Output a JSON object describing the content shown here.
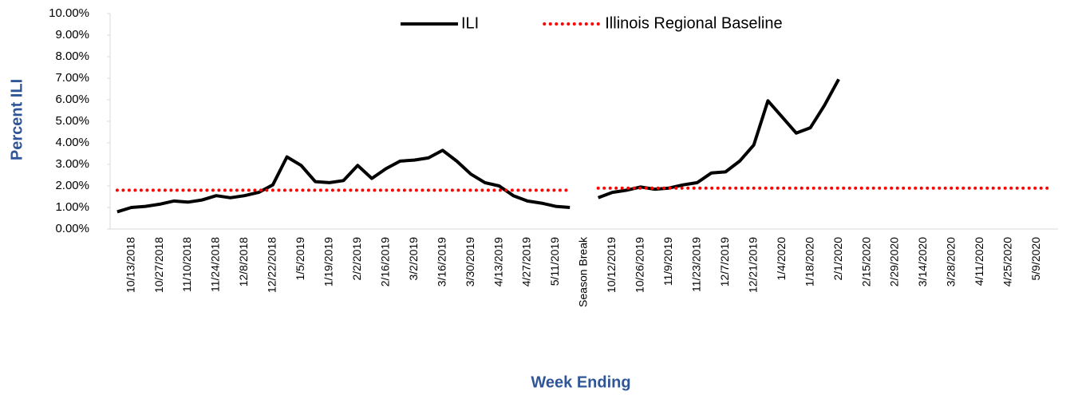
{
  "chart_data": {
    "type": "line",
    "x_label": "Week Ending",
    "y_label": "Percent ILI",
    "categories": [
      null,
      "10/13/2018",
      null,
      "10/27/2018",
      null,
      "11/10/2018",
      null,
      "11/24/2018",
      null,
      "12/8/2018",
      null,
      "12/22/2018",
      null,
      "1/5/2019",
      null,
      "1/19/2019",
      null,
      "2/2/2019",
      null,
      "2/16/2019",
      null,
      "3/2/2019",
      null,
      "3/16/2019",
      null,
      "3/30/2019",
      null,
      "4/13/2019",
      null,
      "4/27/2019",
      null,
      "5/11/2019",
      null,
      "Season Break",
      null,
      "10/12/2019",
      null,
      "10/26/2019",
      null,
      "11/9/2019",
      null,
      "11/23/2019",
      null,
      "12/7/2019",
      null,
      "12/21/2019",
      null,
      "1/4/2020",
      null,
      "1/18/2020",
      null,
      "2/1/2020",
      null,
      "2/15/2020",
      null,
      "2/29/2020",
      null,
      "3/14/2020",
      null,
      "3/28/2020",
      null,
      "4/11/2020",
      null,
      "4/25/2020",
      null,
      "5/9/2020",
      null
    ],
    "series": [
      {
        "name": "ILI",
        "color": "#000000",
        "line_style": "solid",
        "values": [
          0.8,
          1.0,
          1.05,
          1.15,
          1.3,
          1.25,
          1.35,
          1.55,
          1.45,
          1.55,
          1.7,
          2.05,
          3.35,
          2.95,
          2.2,
          2.15,
          2.25,
          2.95,
          2.35,
          2.8,
          3.15,
          3.2,
          3.3,
          3.65,
          3.15,
          2.55,
          2.15,
          2.0,
          1.55,
          1.3,
          1.2,
          1.05,
          1.0,
          null,
          1.45,
          1.7,
          1.8,
          1.95,
          1.85,
          1.9,
          2.05,
          2.15,
          2.6,
          2.65,
          3.15,
          3.9,
          5.95,
          5.2,
          4.45,
          4.7,
          5.75,
          6.95,
          null,
          null,
          null,
          null,
          null,
          null,
          null,
          null,
          null,
          null,
          null,
          null,
          null,
          null,
          null
        ]
      },
      {
        "name": "Illinois Regional Baseline",
        "color": "#ff0000",
        "line_style": "dotted",
        "values": [
          1.8,
          1.8,
          1.8,
          1.8,
          1.8,
          1.8,
          1.8,
          1.8,
          1.8,
          1.8,
          1.8,
          1.8,
          1.8,
          1.8,
          1.8,
          1.8,
          1.8,
          1.8,
          1.8,
          1.8,
          1.8,
          1.8,
          1.8,
          1.8,
          1.8,
          1.8,
          1.8,
          1.8,
          1.8,
          1.8,
          1.8,
          1.8,
          1.8,
          null,
          1.9,
          1.9,
          1.9,
          1.9,
          1.9,
          1.9,
          1.9,
          1.9,
          1.9,
          1.9,
          1.9,
          1.9,
          1.9,
          1.9,
          1.9,
          1.9,
          1.9,
          1.9,
          1.9,
          1.9,
          1.9,
          1.9,
          1.9,
          1.9,
          1.9,
          1.9,
          1.9,
          1.9,
          1.9,
          1.9,
          1.9,
          1.9,
          1.9
        ]
      }
    ],
    "ylim": [
      0,
      10
    ],
    "yticks": [
      {
        "value": 0,
        "label": "0.00%"
      },
      {
        "value": 1,
        "label": "1.00%"
      },
      {
        "value": 2,
        "label": "2.00%"
      },
      {
        "value": 3,
        "label": "3.00%"
      },
      {
        "value": 4,
        "label": "4.00%"
      },
      {
        "value": 5,
        "label": "5.00%"
      },
      {
        "value": 6,
        "label": "6.00%"
      },
      {
        "value": 7,
        "label": "7.00%"
      },
      {
        "value": 8,
        "label": "8.00%"
      },
      {
        "value": 9,
        "label": "9.00%"
      },
      {
        "value": 10,
        "label": "10.00%"
      }
    ],
    "legend": "top",
    "grid": false
  }
}
